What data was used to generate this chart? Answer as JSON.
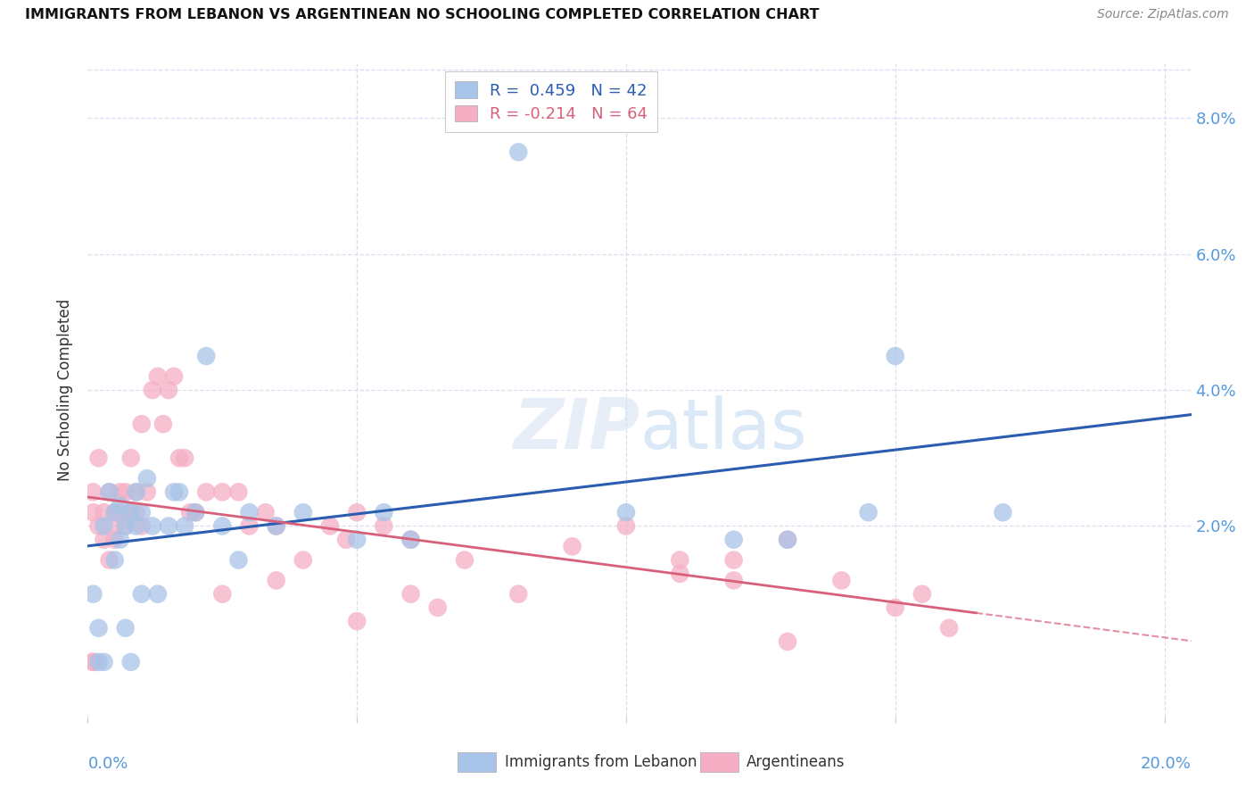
{
  "title": "IMMIGRANTS FROM LEBANON VS ARGENTINEAN NO SCHOOLING COMPLETED CORRELATION CHART",
  "source": "Source: ZipAtlas.com",
  "ylabel": "No Schooling Completed",
  "xmin": 0.0,
  "xmax": 0.205,
  "ymin": -0.008,
  "ymax": 0.088,
  "blue_R": 0.459,
  "blue_N": 42,
  "pink_R": -0.214,
  "pink_N": 64,
  "blue_color": "#a8c4e8",
  "pink_color": "#f5afc4",
  "blue_line_color": "#2a5db0",
  "pink_line_color": "#d9607a",
  "legend_label_blue": "Immigrants from Lebanon",
  "legend_label_pink": "Argentineans",
  "watermark": "ZIPatlas",
  "tick_color": "#5599dd",
  "grid_color": "#d8dff0",
  "blue_x": [
    0.001,
    0.002,
    0.003,
    0.004,
    0.005,
    0.005,
    0.006,
    0.006,
    0.007,
    0.007,
    0.008,
    0.009,
    0.009,
    0.01,
    0.01,
    0.011,
    0.012,
    0.013,
    0.015,
    0.016,
    0.017,
    0.018,
    0.02,
    0.022,
    0.025,
    0.028,
    0.03,
    0.035,
    0.04,
    0.055,
    0.06,
    0.08,
    0.1,
    0.12,
    0.145,
    0.15,
    0.17,
    0.002,
    0.003,
    0.008,
    0.05,
    0.13
  ],
  "blue_y": [
    0.01,
    0.005,
    0.02,
    0.025,
    0.022,
    0.015,
    0.018,
    0.023,
    0.02,
    0.005,
    0.022,
    0.02,
    0.025,
    0.022,
    0.01,
    0.027,
    0.02,
    0.01,
    0.02,
    0.025,
    0.025,
    0.02,
    0.022,
    0.045,
    0.02,
    0.015,
    0.022,
    0.02,
    0.022,
    0.022,
    0.018,
    0.075,
    0.022,
    0.018,
    0.022,
    0.045,
    0.022,
    0.0,
    0.0,
    0.0,
    0.018,
    0.018
  ],
  "pink_x": [
    0.001,
    0.001,
    0.002,
    0.002,
    0.003,
    0.003,
    0.004,
    0.004,
    0.005,
    0.005,
    0.005,
    0.006,
    0.006,
    0.007,
    0.007,
    0.008,
    0.008,
    0.009,
    0.009,
    0.01,
    0.01,
    0.011,
    0.012,
    0.013,
    0.014,
    0.015,
    0.016,
    0.017,
    0.018,
    0.019,
    0.02,
    0.022,
    0.025,
    0.028,
    0.03,
    0.033,
    0.035,
    0.04,
    0.045,
    0.048,
    0.05,
    0.055,
    0.06,
    0.065,
    0.07,
    0.08,
    0.09,
    0.1,
    0.11,
    0.12,
    0.13,
    0.14,
    0.15,
    0.155,
    0.16,
    0.025,
    0.035,
    0.05,
    0.06,
    0.11,
    0.12,
    0.001,
    0.001,
    0.13
  ],
  "pink_y": [
    0.025,
    0.022,
    0.03,
    0.02,
    0.022,
    0.018,
    0.015,
    0.025,
    0.022,
    0.018,
    0.02,
    0.025,
    0.022,
    0.02,
    0.025,
    0.022,
    0.03,
    0.025,
    0.022,
    0.02,
    0.035,
    0.025,
    0.04,
    0.042,
    0.035,
    0.04,
    0.042,
    0.03,
    0.03,
    0.022,
    0.022,
    0.025,
    0.025,
    0.025,
    0.02,
    0.022,
    0.02,
    0.015,
    0.02,
    0.018,
    0.022,
    0.02,
    0.018,
    0.008,
    0.015,
    0.01,
    0.017,
    0.02,
    0.013,
    0.015,
    0.018,
    0.012,
    0.008,
    0.01,
    0.005,
    0.01,
    0.012,
    0.006,
    0.01,
    0.015,
    0.012,
    0.0,
    0.0,
    0.003
  ]
}
